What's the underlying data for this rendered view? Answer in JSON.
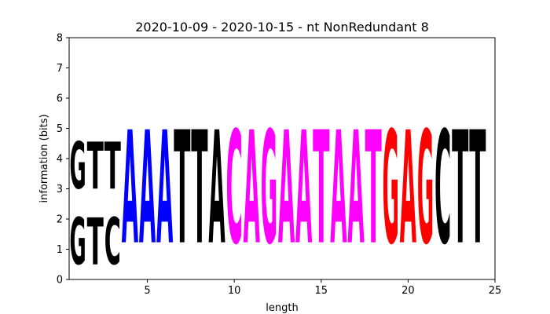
{
  "chart_data": {
    "type": "sequence-logo",
    "title": "2020-10-09 - 2020-10-15 - nt NonRedundant 8",
    "xlabel": "length",
    "ylabel": "information (bits)",
    "xlim": [
      0.5,
      25
    ],
    "ylim": [
      0,
      8
    ],
    "xticks": [
      5,
      10,
      15,
      20,
      25
    ],
    "yticks": [
      0,
      1,
      2,
      3,
      4,
      5,
      6,
      7,
      8
    ],
    "grid": false,
    "colors": {
      "A": "#0000ff",
      "C": "#ff00ff",
      "G": "#ff0000",
      "T": "#000000",
      "X": "#000000"
    },
    "positions": [
      {
        "pos": 1,
        "letters": [
          {
            "char": "G",
            "bits": 2.5,
            "color": "#000000"
          },
          {
            "char": "G",
            "bits": 2.5,
            "color": "#000000"
          }
        ]
      },
      {
        "pos": 2,
        "letters": [
          {
            "char": "T",
            "bits": 2.5,
            "color": "#000000"
          },
          {
            "char": "T",
            "bits": 2.5,
            "color": "#000000"
          }
        ]
      },
      {
        "pos": 3,
        "letters": [
          {
            "char": "C",
            "bits": 2.5,
            "color": "#000000"
          },
          {
            "char": "T",
            "bits": 2.5,
            "color": "#000000"
          }
        ]
      },
      {
        "pos": 4,
        "letters": [
          {
            "char": "A",
            "bits": 6.0,
            "color": "#0000ff"
          }
        ]
      },
      {
        "pos": 5,
        "letters": [
          {
            "char": "A",
            "bits": 6.0,
            "color": "#0000ff"
          }
        ]
      },
      {
        "pos": 6,
        "letters": [
          {
            "char": "A",
            "bits": 6.0,
            "color": "#0000ff"
          }
        ]
      },
      {
        "pos": 7,
        "letters": [
          {
            "char": "T",
            "bits": 6.0,
            "color": "#000000"
          }
        ]
      },
      {
        "pos": 8,
        "letters": [
          {
            "char": "T",
            "bits": 6.0,
            "color": "#000000"
          }
        ]
      },
      {
        "pos": 9,
        "letters": [
          {
            "char": "A",
            "bits": 6.0,
            "color": "#000000"
          }
        ]
      },
      {
        "pos": 10,
        "letters": [
          {
            "char": "C",
            "bits": 6.0,
            "color": "#ff00ff"
          }
        ]
      },
      {
        "pos": 11,
        "letters": [
          {
            "char": "A",
            "bits": 6.0,
            "color": "#ff00ff"
          }
        ]
      },
      {
        "pos": 12,
        "letters": [
          {
            "char": "G",
            "bits": 6.0,
            "color": "#ff00ff"
          }
        ]
      },
      {
        "pos": 13,
        "letters": [
          {
            "char": "A",
            "bits": 6.0,
            "color": "#ff00ff"
          }
        ]
      },
      {
        "pos": 14,
        "letters": [
          {
            "char": "A",
            "bits": 6.0,
            "color": "#ff00ff"
          }
        ]
      },
      {
        "pos": 15,
        "letters": [
          {
            "char": "T",
            "bits": 6.0,
            "color": "#ff00ff"
          }
        ]
      },
      {
        "pos": 16,
        "letters": [
          {
            "char": "A",
            "bits": 6.0,
            "color": "#ff00ff"
          }
        ]
      },
      {
        "pos": 17,
        "letters": [
          {
            "char": "A",
            "bits": 6.0,
            "color": "#ff00ff"
          }
        ]
      },
      {
        "pos": 18,
        "letters": [
          {
            "char": "T",
            "bits": 6.0,
            "color": "#ff00ff"
          }
        ]
      },
      {
        "pos": 19,
        "letters": [
          {
            "char": "G",
            "bits": 6.0,
            "color": "#ff0000"
          }
        ]
      },
      {
        "pos": 20,
        "letters": [
          {
            "char": "A",
            "bits": 6.0,
            "color": "#ff0000"
          }
        ]
      },
      {
        "pos": 21,
        "letters": [
          {
            "char": "G",
            "bits": 6.0,
            "color": "#ff0000"
          }
        ]
      },
      {
        "pos": 22,
        "letters": [
          {
            "char": "C",
            "bits": 6.0,
            "color": "#000000"
          }
        ]
      },
      {
        "pos": 23,
        "letters": [
          {
            "char": "T",
            "bits": 6.0,
            "color": "#000000"
          }
        ]
      },
      {
        "pos": 24,
        "letters": [
          {
            "char": "T",
            "bits": 6.0,
            "color": "#000000"
          }
        ]
      }
    ]
  }
}
